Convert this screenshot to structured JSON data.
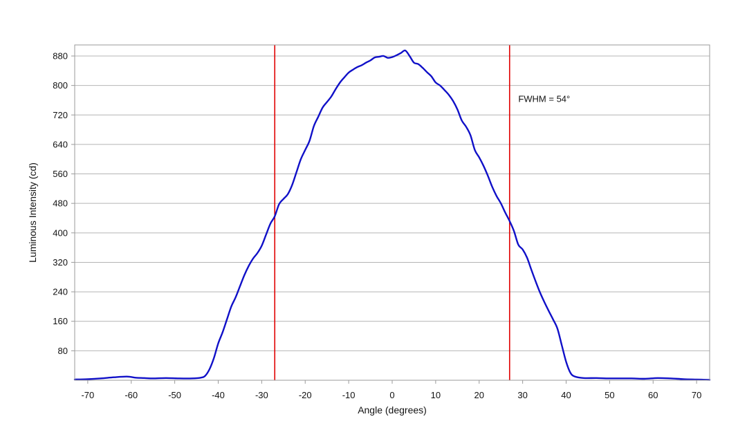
{
  "chart_data": {
    "type": "line",
    "xlabel": "Angle (degrees)",
    "ylabel": "Luminous Intensity (cd)",
    "xlim": [
      -73,
      73
    ],
    "ylim": [
      0,
      910
    ],
    "x_ticks": [
      -70,
      -60,
      -50,
      -40,
      -30,
      -20,
      -10,
      0,
      10,
      20,
      30,
      40,
      50,
      60,
      70
    ],
    "y_ticks": [
      80,
      160,
      240,
      320,
      400,
      480,
      560,
      640,
      720,
      800,
      880
    ],
    "grid": "horizontal",
    "annotation": {
      "text": "FWHM = 54°",
      "x": 29,
      "y": 755
    },
    "markers": [
      {
        "x": -27,
        "color": "#e00000"
      },
      {
        "x": 27,
        "color": "#e00000"
      }
    ],
    "series": [
      {
        "color": "#1010c8",
        "points": [
          [
            -73,
            2
          ],
          [
            -70,
            3
          ],
          [
            -67,
            5
          ],
          [
            -64,
            8
          ],
          [
            -61,
            10
          ],
          [
            -59,
            7
          ],
          [
            -57,
            6
          ],
          [
            -55,
            5
          ],
          [
            -52,
            6
          ],
          [
            -49,
            5
          ],
          [
            -46,
            5
          ],
          [
            -44,
            7
          ],
          [
            -43,
            12
          ],
          [
            -42,
            30
          ],
          [
            -41,
            60
          ],
          [
            -40,
            100
          ],
          [
            -39,
            130
          ],
          [
            -38,
            165
          ],
          [
            -37,
            200
          ],
          [
            -36,
            225
          ],
          [
            -35,
            255
          ],
          [
            -34,
            285
          ],
          [
            -33,
            310
          ],
          [
            -32,
            330
          ],
          [
            -31,
            345
          ],
          [
            -30,
            365
          ],
          [
            -29,
            395
          ],
          [
            -28,
            425
          ],
          [
            -27,
            445
          ],
          [
            -26,
            478
          ],
          [
            -25,
            492
          ],
          [
            -24,
            505
          ],
          [
            -23,
            530
          ],
          [
            -22,
            565
          ],
          [
            -21,
            600
          ],
          [
            -20,
            625
          ],
          [
            -19,
            650
          ],
          [
            -18,
            690
          ],
          [
            -17,
            715
          ],
          [
            -16,
            740
          ],
          [
            -15,
            755
          ],
          [
            -14,
            770
          ],
          [
            -13,
            790
          ],
          [
            -12,
            808
          ],
          [
            -11,
            822
          ],
          [
            -10,
            835
          ],
          [
            -9,
            843
          ],
          [
            -8,
            850
          ],
          [
            -7,
            855
          ],
          [
            -6,
            862
          ],
          [
            -5,
            868
          ],
          [
            -4,
            876
          ],
          [
            -3,
            878
          ],
          [
            -2,
            880
          ],
          [
            -1,
            875
          ],
          [
            0,
            877
          ],
          [
            1,
            882
          ],
          [
            2,
            888
          ],
          [
            3,
            895
          ],
          [
            4,
            880
          ],
          [
            5,
            862
          ],
          [
            6,
            858
          ],
          [
            7,
            848
          ],
          [
            8,
            836
          ],
          [
            9,
            825
          ],
          [
            10,
            808
          ],
          [
            11,
            800
          ],
          [
            12,
            788
          ],
          [
            13,
            775
          ],
          [
            14,
            758
          ],
          [
            15,
            735
          ],
          [
            16,
            705
          ],
          [
            17,
            688
          ],
          [
            18,
            665
          ],
          [
            19,
            625
          ],
          [
            20,
            605
          ],
          [
            21,
            582
          ],
          [
            22,
            555
          ],
          [
            23,
            525
          ],
          [
            24,
            500
          ],
          [
            25,
            480
          ],
          [
            26,
            455
          ],
          [
            27,
            432
          ],
          [
            28,
            405
          ],
          [
            29,
            368
          ],
          [
            30,
            355
          ],
          [
            31,
            333
          ],
          [
            32,
            300
          ],
          [
            33,
            268
          ],
          [
            34,
            238
          ],
          [
            35,
            212
          ],
          [
            36,
            188
          ],
          [
            37,
            165
          ],
          [
            38,
            140
          ],
          [
            39,
            95
          ],
          [
            40,
            50
          ],
          [
            41,
            20
          ],
          [
            42,
            10
          ],
          [
            44,
            6
          ],
          [
            47,
            6
          ],
          [
            50,
            5
          ],
          [
            55,
            5
          ],
          [
            58,
            4
          ],
          [
            61,
            6
          ],
          [
            64,
            5
          ],
          [
            67,
            3
          ],
          [
            70,
            2
          ],
          [
            73,
            1
          ]
        ]
      }
    ]
  }
}
